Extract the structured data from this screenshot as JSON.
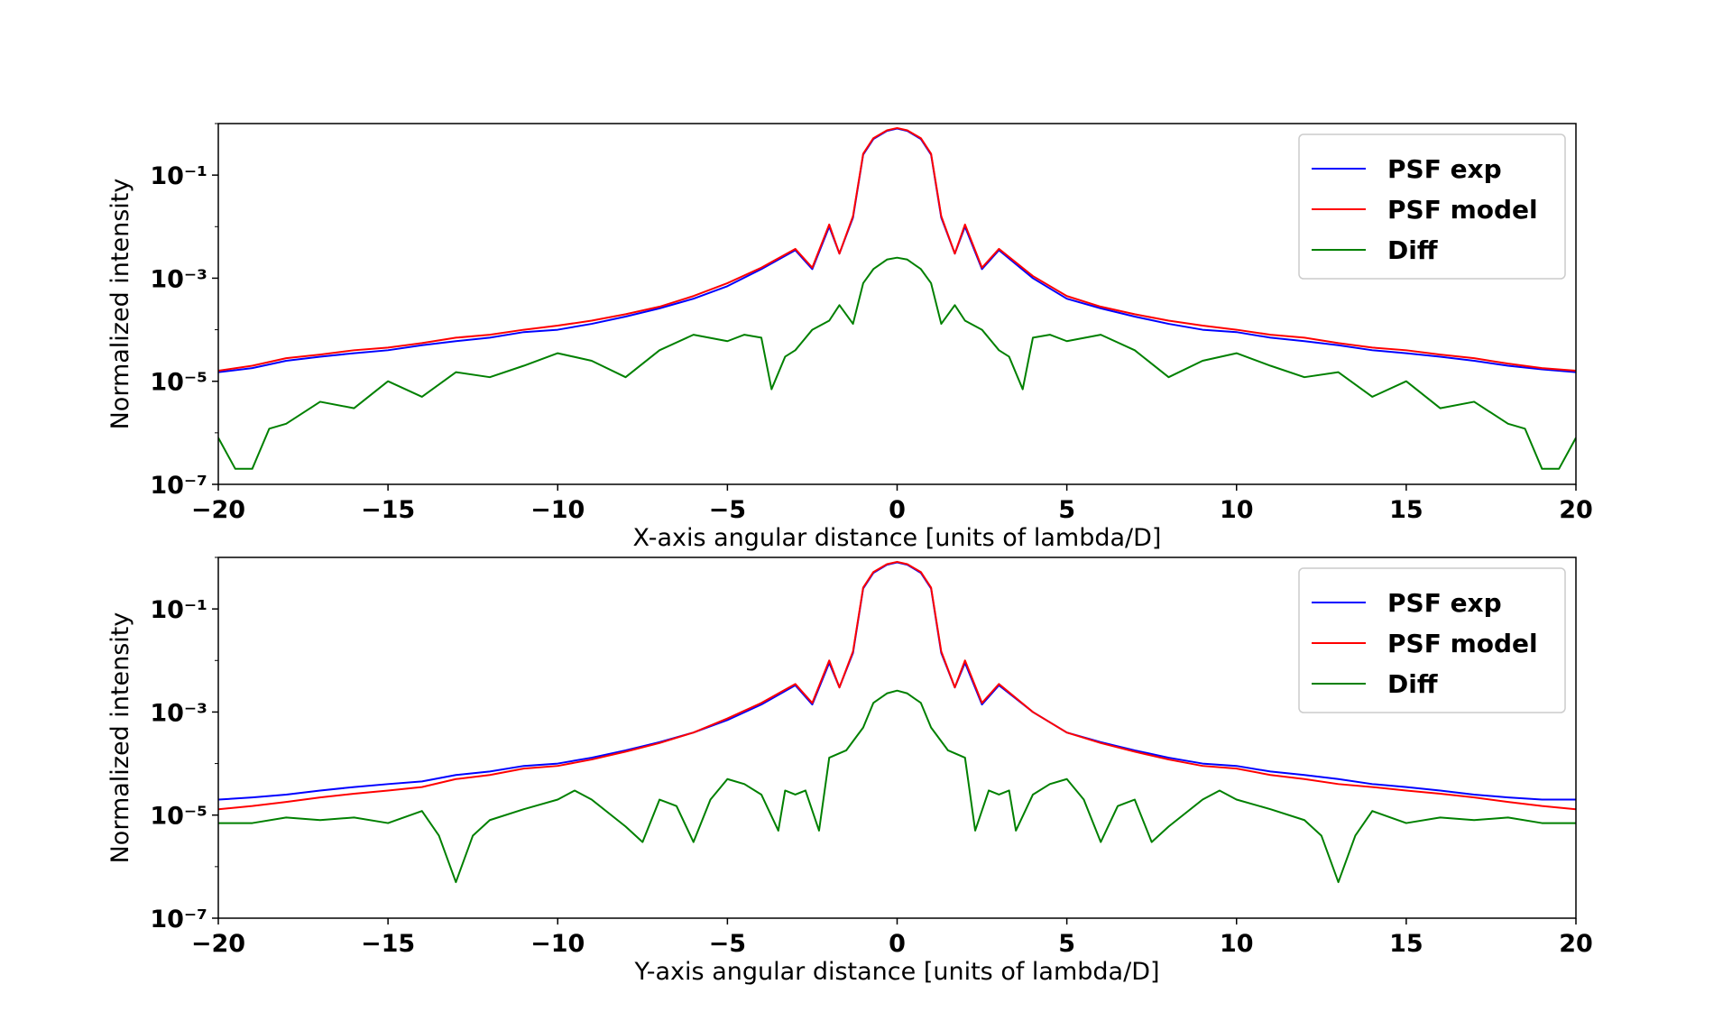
{
  "chart_data": [
    {
      "type": "line",
      "xlabel": "X-axis angular distance [units of lambda/D]",
      "ylabel": "Normalized intensity",
      "xlim": [
        -20,
        20
      ],
      "ylim": [
        1e-07,
        1
      ],
      "yscale": "log",
      "grid": false,
      "legend_position": "top-right",
      "x_ticks": [
        "−20",
        "−15",
        "−10",
        "−5",
        "0",
        "5",
        "10",
        "15",
        "20"
      ],
      "y_ticks": [
        "10⁻⁷",
        "10⁻⁵",
        "10⁻³",
        "10⁻¹"
      ],
      "series": [
        {
          "name": "PSF exp",
          "color": "#0000ff",
          "x": [
            -20,
            -19,
            -18,
            -17,
            -16,
            -15,
            -14,
            -13,
            -12,
            -11,
            -10,
            -9,
            -8,
            -7,
            -6,
            -5,
            -4,
            -3,
            -2.5,
            -2,
            -1.7,
            -1.3,
            -1,
            -0.7,
            -0.3,
            0,
            0.3,
            0.7,
            1,
            1.3,
            1.7,
            2,
            2.5,
            3,
            4,
            5,
            6,
            7,
            8,
            9,
            10,
            11,
            12,
            13,
            14,
            15,
            16,
            17,
            18,
            19,
            20
          ],
          "y": [
            1.5e-05,
            1.8e-05,
            2.5e-05,
            3e-05,
            3.5e-05,
            4e-05,
            5e-05,
            6e-05,
            7e-05,
            9e-05,
            0.0001,
            0.00013,
            0.00018,
            0.00026,
            0.0004,
            0.0007,
            0.0015,
            0.0035,
            0.0015,
            0.01,
            0.003,
            0.015,
            0.25,
            0.5,
            0.72,
            0.8,
            0.72,
            0.5,
            0.25,
            0.015,
            0.003,
            0.01,
            0.0015,
            0.0035,
            0.001,
            0.0004,
            0.00026,
            0.00018,
            0.00013,
            0.0001,
            9e-05,
            7e-05,
            6e-05,
            5e-05,
            4e-05,
            3.5e-05,
            3e-05,
            2.5e-05,
            2e-05,
            1.7e-05,
            1.5e-05
          ]
        },
        {
          "name": "PSF model",
          "color": "#ff0000",
          "x": [
            -20,
            -19,
            -18,
            -17,
            -16,
            -15,
            -14,
            -13,
            -12,
            -11,
            -10,
            -9,
            -8,
            -7,
            -6,
            -5,
            -4,
            -3,
            -2.5,
            -2,
            -1.7,
            -1.3,
            -1,
            -0.7,
            -0.3,
            0,
            0.3,
            0.7,
            1,
            1.3,
            1.7,
            2,
            2.5,
            3,
            4,
            5,
            6,
            7,
            8,
            9,
            10,
            11,
            12,
            13,
            14,
            15,
            16,
            17,
            18,
            19,
            20
          ],
          "y": [
            1.6e-05,
            2e-05,
            2.8e-05,
            3.3e-05,
            4e-05,
            4.5e-05,
            5.5e-05,
            7e-05,
            8e-05,
            0.0001,
            0.00012,
            0.00015,
            0.0002,
            0.00028,
            0.00045,
            0.0008,
            0.0016,
            0.0037,
            0.0016,
            0.011,
            0.003,
            0.016,
            0.26,
            0.52,
            0.74,
            0.82,
            0.74,
            0.52,
            0.26,
            0.016,
            0.003,
            0.011,
            0.0016,
            0.0037,
            0.0011,
            0.00045,
            0.00028,
            0.0002,
            0.00015,
            0.00012,
            0.0001,
            8e-05,
            7e-05,
            5.5e-05,
            4.5e-05,
            4e-05,
            3.3e-05,
            2.8e-05,
            2.2e-05,
            1.8e-05,
            1.6e-05
          ]
        },
        {
          "name": "Diff",
          "color": "#008000",
          "x": [
            -20,
            -19.5,
            -19,
            -18.5,
            -18,
            -17,
            -16,
            -15,
            -14,
            -13,
            -12,
            -11,
            -10,
            -9,
            -8,
            -7,
            -6,
            -5,
            -4.5,
            -4,
            -3.7,
            -3.3,
            -3,
            -2.5,
            -2,
            -1.7,
            -1.3,
            -1,
            -0.7,
            -0.3,
            0,
            0.3,
            0.7,
            1,
            1.3,
            1.7,
            2,
            2.5,
            3,
            3.3,
            3.7,
            4,
            4.5,
            5,
            6,
            7,
            8,
            9,
            10,
            11,
            12,
            13,
            14,
            15,
            16,
            17,
            18,
            18.5,
            19,
            19.5,
            20
          ],
          "y": [
            8e-07,
            2e-07,
            2e-07,
            1.2e-06,
            1.5e-06,
            4e-06,
            3e-06,
            1e-05,
            5e-06,
            1.5e-05,
            1.2e-05,
            2e-05,
            3.5e-05,
            2.5e-05,
            1.2e-05,
            4e-05,
            8e-05,
            6e-05,
            8e-05,
            7e-05,
            7e-06,
            3e-05,
            4e-05,
            0.0001,
            0.00015,
            0.0003,
            0.00013,
            0.0008,
            0.0015,
            0.0023,
            0.0025,
            0.0023,
            0.0015,
            0.0008,
            0.00013,
            0.0003,
            0.00015,
            0.0001,
            4e-05,
            3e-05,
            7e-06,
            7e-05,
            8e-05,
            6e-05,
            8e-05,
            4e-05,
            1.2e-05,
            2.5e-05,
            3.5e-05,
            2e-05,
            1.2e-05,
            1.5e-05,
            5e-06,
            1e-05,
            3e-06,
            4e-06,
            1.5e-06,
            1.2e-06,
            2e-07,
            2e-07,
            8e-07
          ]
        }
      ]
    },
    {
      "type": "line",
      "xlabel": "Y-axis angular distance [units of lambda/D]",
      "ylabel": "Normalized intensity",
      "xlim": [
        -20,
        20
      ],
      "ylim": [
        1e-07,
        1
      ],
      "yscale": "log",
      "grid": false,
      "legend_position": "top-right",
      "x_ticks": [
        "−20",
        "−15",
        "−10",
        "−5",
        "0",
        "5",
        "10",
        "15",
        "20"
      ],
      "y_ticks": [
        "10⁻⁷",
        "10⁻⁵",
        "10⁻³",
        "10⁻¹"
      ],
      "series": [
        {
          "name": "PSF exp",
          "color": "#0000ff",
          "x": [
            -20,
            -19,
            -18,
            -17,
            -16,
            -15,
            -14,
            -13,
            -12,
            -11,
            -10,
            -9,
            -8,
            -7,
            -6,
            -5,
            -4,
            -3,
            -2.5,
            -2,
            -1.7,
            -1.3,
            -1,
            -0.7,
            -0.3,
            0,
            0.3,
            0.7,
            1,
            1.3,
            1.7,
            2,
            2.5,
            3,
            4,
            5,
            6,
            7,
            8,
            9,
            10,
            11,
            12,
            13,
            14,
            15,
            16,
            17,
            18,
            19,
            20
          ],
          "y": [
            2e-05,
            2.2e-05,
            2.5e-05,
            3e-05,
            3.5e-05,
            4e-05,
            4.5e-05,
            6e-05,
            7e-05,
            9e-05,
            0.0001,
            0.00013,
            0.00018,
            0.00026,
            0.0004,
            0.0007,
            0.0014,
            0.0033,
            0.0014,
            0.009,
            0.003,
            0.014,
            0.25,
            0.5,
            0.72,
            0.8,
            0.72,
            0.5,
            0.25,
            0.014,
            0.003,
            0.009,
            0.0014,
            0.0033,
            0.001,
            0.0004,
            0.00026,
            0.00018,
            0.00013,
            0.0001,
            9e-05,
            7e-05,
            6e-05,
            5e-05,
            4e-05,
            3.5e-05,
            3e-05,
            2.5e-05,
            2.2e-05,
            2e-05,
            2e-05
          ]
        },
        {
          "name": "PSF model",
          "color": "#ff0000",
          "x": [
            -20,
            -19,
            -18,
            -17,
            -16,
            -15,
            -14,
            -13,
            -12,
            -11,
            -10,
            -9,
            -8,
            -7,
            -6,
            -5,
            -4,
            -3,
            -2.5,
            -2,
            -1.7,
            -1.3,
            -1,
            -0.7,
            -0.3,
            0,
            0.3,
            0.7,
            1,
            1.3,
            1.7,
            2,
            2.5,
            3,
            4,
            5,
            6,
            7,
            8,
            9,
            10,
            11,
            12,
            13,
            14,
            15,
            16,
            17,
            18,
            19,
            20
          ],
          "y": [
            1.3e-05,
            1.5e-05,
            1.8e-05,
            2.2e-05,
            2.6e-05,
            3e-05,
            3.5e-05,
            5e-05,
            6e-05,
            8e-05,
            9e-05,
            0.00012,
            0.00017,
            0.00025,
            0.0004,
            0.00075,
            0.0015,
            0.0035,
            0.0015,
            0.01,
            0.003,
            0.015,
            0.26,
            0.52,
            0.74,
            0.82,
            0.74,
            0.52,
            0.26,
            0.015,
            0.003,
            0.01,
            0.0015,
            0.0035,
            0.001,
            0.0004,
            0.00025,
            0.00017,
            0.00012,
            9e-05,
            8e-05,
            6e-05,
            5e-05,
            4e-05,
            3.5e-05,
            3e-05,
            2.6e-05,
            2.2e-05,
            1.8e-05,
            1.5e-05,
            1.3e-05
          ]
        },
        {
          "name": "Diff",
          "color": "#008000",
          "x": [
            -20,
            -19,
            -18,
            -17,
            -16,
            -15,
            -14,
            -13.5,
            -13,
            -12.5,
            -12,
            -11,
            -10,
            -9.5,
            -9,
            -8,
            -7.5,
            -7,
            -6.5,
            -6,
            -5.5,
            -5,
            -4.5,
            -4,
            -3.5,
            -3.3,
            -3,
            -2.7,
            -2.3,
            -2,
            -1.5,
            -1,
            -0.7,
            -0.3,
            0,
            0.3,
            0.7,
            1,
            1.5,
            2,
            2.3,
            2.7,
            3,
            3.3,
            3.5,
            4,
            4.5,
            5,
            5.5,
            6,
            6.5,
            7,
            7.5,
            8,
            9,
            9.5,
            10,
            11,
            12,
            12.5,
            13,
            13.5,
            14,
            15,
            16,
            17,
            18,
            19,
            20
          ],
          "y": [
            7e-06,
            7e-06,
            9e-06,
            8e-06,
            9e-06,
            7e-06,
            1.2e-05,
            4e-06,
            5e-07,
            4e-06,
            8e-06,
            1.3e-05,
            2e-05,
            3e-05,
            2e-05,
            6e-06,
            3e-06,
            2e-05,
            1.5e-05,
            3e-06,
            2e-05,
            5e-05,
            4e-05,
            2.5e-05,
            5e-06,
            3e-05,
            2.5e-05,
            3e-05,
            5e-06,
            0.00013,
            0.00018,
            0.0005,
            0.0015,
            0.0023,
            0.0026,
            0.0023,
            0.0015,
            0.0005,
            0.00018,
            0.00013,
            5e-06,
            3e-05,
            2.5e-05,
            3e-05,
            5e-06,
            2.5e-05,
            4e-05,
            5e-05,
            2e-05,
            3e-06,
            1.5e-05,
            2e-05,
            3e-06,
            6e-06,
            2e-05,
            3e-05,
            2e-05,
            1.3e-05,
            8e-06,
            4e-06,
            5e-07,
            4e-06,
            1.2e-05,
            7e-06,
            9e-06,
            8e-06,
            9e-06,
            7e-06,
            7e-06
          ]
        }
      ]
    }
  ]
}
